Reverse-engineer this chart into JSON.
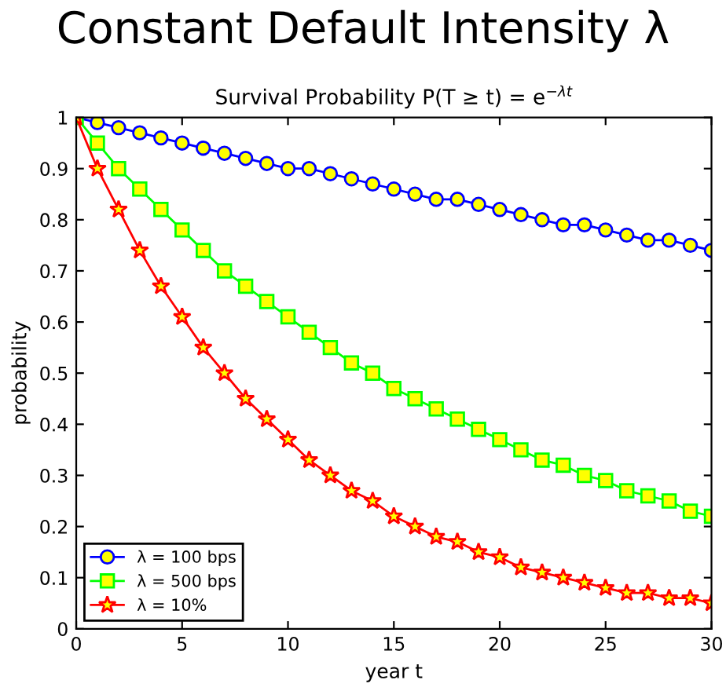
{
  "chart_data": {
    "type": "line",
    "title": "Constant Default Intensity λ",
    "subtitle": "Survival Probability P(T ≥ t) = e$^{−λt}$",
    "xlabel": "year t",
    "ylabel": "probability",
    "x": [
      0,
      1,
      2,
      3,
      4,
      5,
      6,
      7,
      8,
      9,
      10,
      11,
      12,
      13,
      14,
      15,
      16,
      17,
      18,
      19,
      20,
      21,
      22,
      23,
      24,
      25,
      26,
      27,
      28,
      29,
      30
    ],
    "series": [
      {
        "name": "λ = 100 bps",
        "color": "#0000ff",
        "marker": "circle",
        "values": [
          1,
          0.99,
          0.98,
          0.97,
          0.96,
          0.95,
          0.94,
          0.93,
          0.92,
          0.91,
          0.9,
          0.9,
          0.89,
          0.88,
          0.87,
          0.86,
          0.85,
          0.84,
          0.84,
          0.83,
          0.82,
          0.81,
          0.8,
          0.79,
          0.79,
          0.78,
          0.77,
          0.76,
          0.76,
          0.75,
          0.74
        ]
      },
      {
        "name": "λ = 500 bps",
        "color": "#00ff00",
        "marker": "square",
        "values": [
          1,
          0.95,
          0.9,
          0.86,
          0.82,
          0.78,
          0.74,
          0.7,
          0.67,
          0.64,
          0.61,
          0.58,
          0.55,
          0.52,
          0.5,
          0.47,
          0.45,
          0.43,
          0.41,
          0.39,
          0.37,
          0.35,
          0.33,
          0.32,
          0.3,
          0.29,
          0.27,
          0.26,
          0.25,
          0.23,
          0.22
        ]
      },
      {
        "name": "λ = 10%",
        "color": "#ff0000",
        "marker": "star",
        "values": [
          1,
          0.9,
          0.82,
          0.74,
          0.67,
          0.61,
          0.55,
          0.5,
          0.45,
          0.41,
          0.37,
          0.33,
          0.3,
          0.27,
          0.25,
          0.22,
          0.2,
          0.18,
          0.17,
          0.15,
          0.14,
          0.12,
          0.11,
          0.1,
          0.09,
          0.08,
          0.07,
          0.07,
          0.06,
          0.06,
          0.05
        ]
      }
    ],
    "xlim": [
      0,
      30
    ],
    "xticks": [
      0,
      5,
      10,
      15,
      20,
      25,
      30
    ],
    "ylim": [
      0,
      1
    ],
    "yticks": [
      0,
      0.1,
      0.2,
      0.3,
      0.4,
      0.5,
      0.6,
      0.7,
      0.8,
      0.9,
      1
    ],
    "grid": false,
    "legend": "bottom left",
    "line_style": "solid"
  }
}
